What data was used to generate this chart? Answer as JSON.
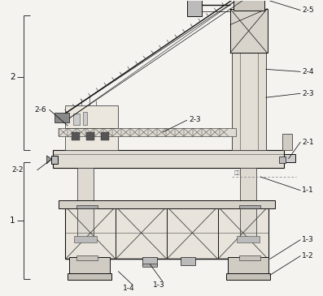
{
  "bg_color": "#f5f3f0",
  "line_color": "#444444",
  "dark_color": "#111111",
  "fig_width": 3.97,
  "fig_height": 3.65,
  "dpi": 100
}
